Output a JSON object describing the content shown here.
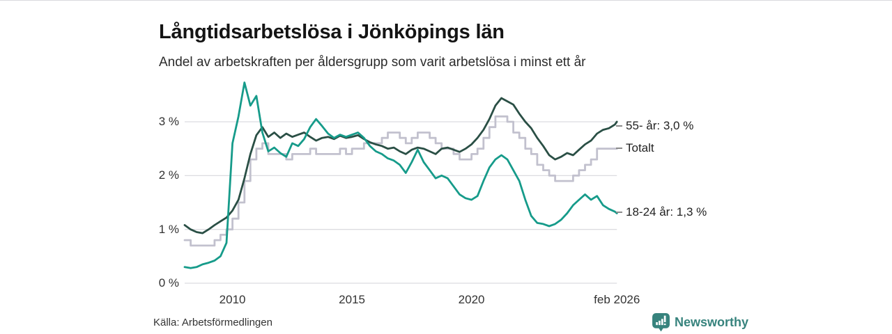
{
  "chart_data": {
    "type": "line",
    "title": "Långtidsarbetslösa i Jönköpings län",
    "subtitle": "Andel av arbetskraften per åldersgrupp som varit arbetslösa i minst ett år",
    "source": "Källa: Arbetsförmedlingen",
    "xlabel": "",
    "ylabel": "",
    "grid": "horizontal",
    "legend_position": "right-end-labels",
    "x_range": [
      2008.0,
      2026.083
    ],
    "y_range": [
      0,
      3.9
    ],
    "y_ticks": [
      {
        "value": 0,
        "label": "0 %"
      },
      {
        "value": 1,
        "label": "1 %"
      },
      {
        "value": 2,
        "label": "2 %"
      },
      {
        "value": 3,
        "label": "3 %"
      }
    ],
    "x_ticks": [
      {
        "value": 2010,
        "label": "2010"
      },
      {
        "value": 2015,
        "label": "2015"
      },
      {
        "value": 2020,
        "label": "2020"
      },
      {
        "value": 2026.083,
        "label": "feb 2026"
      }
    ],
    "x": [
      2008.0,
      2008.25,
      2008.5,
      2008.75,
      2009.0,
      2009.25,
      2009.5,
      2009.75,
      2010.0,
      2010.25,
      2010.5,
      2010.75,
      2011.0,
      2011.25,
      2011.5,
      2011.75,
      2012.0,
      2012.25,
      2012.5,
      2012.75,
      2013.0,
      2013.25,
      2013.5,
      2013.75,
      2014.0,
      2014.25,
      2014.5,
      2014.75,
      2015.0,
      2015.25,
      2015.5,
      2015.75,
      2016.0,
      2016.25,
      2016.5,
      2016.75,
      2017.0,
      2017.25,
      2017.5,
      2017.75,
      2018.0,
      2018.25,
      2018.5,
      2018.75,
      2019.0,
      2019.25,
      2019.5,
      2019.75,
      2020.0,
      2020.25,
      2020.5,
      2020.75,
      2021.0,
      2021.25,
      2021.5,
      2021.75,
      2022.0,
      2022.25,
      2022.5,
      2022.75,
      2023.0,
      2023.25,
      2023.5,
      2023.75,
      2024.0,
      2024.25,
      2024.5,
      2024.75,
      2025.0,
      2025.25,
      2025.5,
      2025.75,
      2026.0,
      2026.083
    ],
    "series": [
      {
        "name": "Totalt",
        "end_label": "Totalt",
        "end_value": 2.5,
        "color": "#c2c1ce",
        "interpolation": "step",
        "values": [
          0.8,
          0.7,
          0.7,
          0.7,
          0.7,
          0.8,
          0.9,
          1.0,
          1.2,
          1.5,
          1.9,
          2.3,
          2.5,
          2.6,
          2.4,
          2.4,
          2.4,
          2.3,
          2.4,
          2.4,
          2.4,
          2.5,
          2.4,
          2.4,
          2.4,
          2.4,
          2.5,
          2.4,
          2.5,
          2.5,
          2.6,
          2.6,
          2.6,
          2.7,
          2.8,
          2.8,
          2.7,
          2.6,
          2.7,
          2.8,
          2.8,
          2.7,
          2.6,
          2.5,
          2.5,
          2.4,
          2.3,
          2.3,
          2.4,
          2.5,
          2.7,
          2.9,
          3.1,
          3.1,
          3.0,
          2.8,
          2.7,
          2.5,
          2.4,
          2.2,
          2.1,
          2.0,
          1.9,
          1.9,
          1.9,
          2.0,
          2.1,
          2.2,
          2.3,
          2.5,
          2.5,
          2.5,
          2.5,
          2.5
        ]
      },
      {
        "name": "55- år",
        "end_label": "55- år: 3,0 %",
        "end_value": 3.0,
        "color": "#2a4f45",
        "interpolation": "linear",
        "values": [
          1.08,
          1.0,
          0.95,
          0.93,
          1.0,
          1.08,
          1.15,
          1.22,
          1.35,
          1.55,
          1.95,
          2.4,
          2.75,
          2.9,
          2.72,
          2.8,
          2.7,
          2.78,
          2.72,
          2.76,
          2.8,
          2.72,
          2.65,
          2.7,
          2.72,
          2.68,
          2.74,
          2.7,
          2.72,
          2.75,
          2.68,
          2.62,
          2.58,
          2.55,
          2.5,
          2.52,
          2.45,
          2.4,
          2.48,
          2.52,
          2.5,
          2.45,
          2.4,
          2.5,
          2.52,
          2.48,
          2.44,
          2.5,
          2.58,
          2.7,
          2.85,
          3.05,
          3.3,
          3.44,
          3.38,
          3.32,
          3.15,
          3.0,
          2.88,
          2.7,
          2.55,
          2.38,
          2.3,
          2.35,
          2.42,
          2.38,
          2.48,
          2.58,
          2.65,
          2.78,
          2.85,
          2.88,
          2.95,
          3.0
        ]
      },
      {
        "name": "18-24 år",
        "end_label": "18-24 år: 1,3 %",
        "end_value": 1.3,
        "color": "#169b8a",
        "interpolation": "linear",
        "values": [
          0.3,
          0.28,
          0.3,
          0.35,
          0.38,
          0.42,
          0.5,
          0.75,
          2.6,
          3.1,
          3.73,
          3.3,
          3.48,
          2.8,
          2.45,
          2.52,
          2.42,
          2.35,
          2.6,
          2.55,
          2.68,
          2.9,
          3.05,
          2.92,
          2.78,
          2.7,
          2.76,
          2.72,
          2.76,
          2.8,
          2.7,
          2.55,
          2.45,
          2.4,
          2.32,
          2.28,
          2.2,
          2.05,
          2.25,
          2.48,
          2.25,
          2.1,
          1.95,
          2.0,
          1.95,
          1.8,
          1.65,
          1.58,
          1.55,
          1.62,
          1.9,
          2.15,
          2.3,
          2.38,
          2.3,
          2.1,
          1.9,
          1.55,
          1.25,
          1.12,
          1.1,
          1.06,
          1.1,
          1.18,
          1.3,
          1.45,
          1.55,
          1.65,
          1.55,
          1.62,
          1.45,
          1.38,
          1.33,
          1.3
        ]
      }
    ]
  },
  "footer": {
    "brand": "Newsworthy",
    "brand_color": "#37837d"
  },
  "colors": {
    "grid": "#dcdce0",
    "axis_text": "#333333",
    "annotation_text": "#222222"
  }
}
